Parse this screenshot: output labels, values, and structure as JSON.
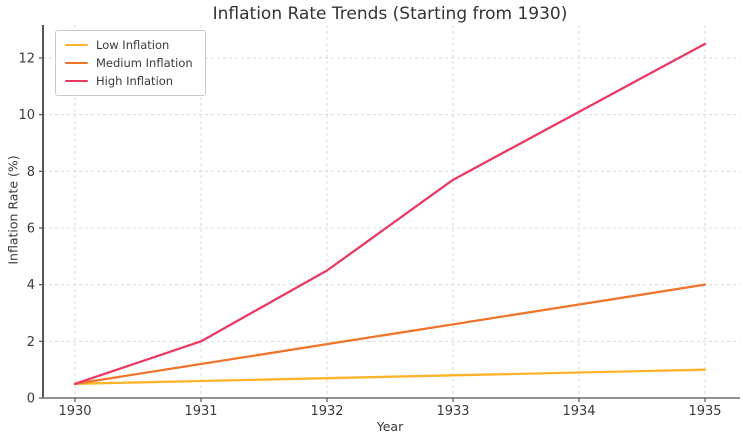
{
  "chart_data": {
    "type": "line",
    "title": "Inflation Rate Trends (Starting from 1930)",
    "xlabel": "Year",
    "ylabel": "Inflation Rate (%)",
    "x": [
      1930,
      1931,
      1932,
      1933,
      1934,
      1935
    ],
    "xticks": [
      "1930",
      "1931",
      "1932",
      "1933",
      "1934",
      "1935"
    ],
    "yticks": [
      "0",
      "2",
      "4",
      "6",
      "8",
      "10",
      "12"
    ],
    "xlim": [
      1929.75,
      1935.28
    ],
    "ylim": [
      0,
      13.2
    ],
    "grid": true,
    "grid_style": "dashed",
    "legend_position": "upper left",
    "series": [
      {
        "name": "Low Inflation",
        "color": "#FFB32B",
        "values": [
          0.5,
          0.6,
          0.7,
          0.8,
          0.9,
          1.0
        ]
      },
      {
        "name": "Medium Inflation",
        "color": "#F0752B",
        "values": [
          0.5,
          1.2,
          1.9,
          2.6,
          3.3,
          4.0
        ]
      },
      {
        "name": "High Inflation",
        "color": "#E93A63",
        "values": [
          0.5,
          2.0,
          4.5,
          7.7,
          10.1,
          12.5
        ]
      }
    ],
    "colors": {
      "background": "#ffffff",
      "grid": "#d9d9d9",
      "spine_left": "#2b2b2b",
      "spine_bottom": "#808080",
      "tick": "#555555",
      "tick_label": "#3b3b3b",
      "title": "#333333"
    }
  }
}
